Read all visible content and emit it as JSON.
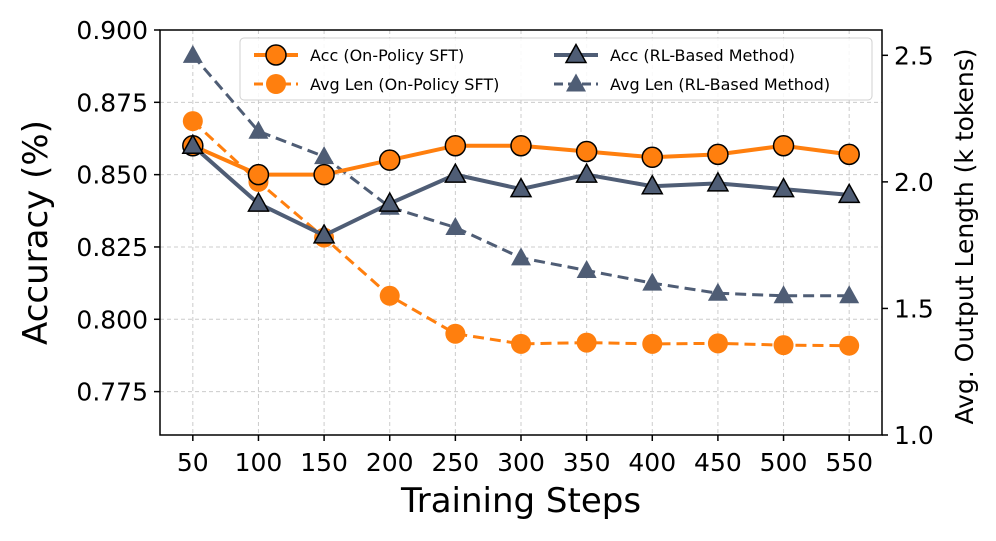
{
  "chart_data": {
    "type": "line",
    "xlabel": "Training Steps",
    "ylabel": "Accuracy (%)",
    "y2label": "Avg. Output Length (k tokens)",
    "x": [
      50,
      100,
      150,
      200,
      250,
      300,
      350,
      400,
      450,
      500,
      550
    ],
    "xticks": [
      "50",
      "100",
      "150",
      "200",
      "250",
      "300",
      "350",
      "400",
      "450",
      "500",
      "550"
    ],
    "ylim": [
      0.76,
      0.9
    ],
    "yticks": [
      "0.775",
      "0.800",
      "0.825",
      "0.850",
      "0.875",
      "0.900"
    ],
    "y2lim": [
      1.0,
      2.6
    ],
    "y2ticks": [
      "1.0",
      "1.5",
      "2.0",
      "2.5"
    ],
    "grid": true,
    "legend_position": "top",
    "series": [
      {
        "name": "Acc (On-Policy SFT)",
        "axis": "left",
        "color": "#ff7f0e",
        "marker": "circle",
        "dash": "solid",
        "values": [
          0.86,
          0.85,
          0.85,
          0.855,
          0.86,
          0.86,
          0.858,
          0.856,
          0.857,
          0.86,
          0.857
        ]
      },
      {
        "name": "Avg Len (On-Policy SFT)",
        "axis": "right",
        "color": "#ff7f0e",
        "marker": "circle",
        "dash": "dashed",
        "values": [
          2.24,
          2.0,
          1.78,
          1.55,
          1.4,
          1.36,
          1.365,
          1.36,
          1.362,
          1.355,
          1.353
        ]
      },
      {
        "name": "Acc (RL-Based Method)",
        "axis": "left",
        "color": "#4f5d75",
        "marker": "triangle",
        "dash": "solid",
        "values": [
          0.86,
          0.84,
          0.829,
          0.84,
          0.85,
          0.845,
          0.85,
          0.846,
          0.847,
          0.845,
          0.843
        ]
      },
      {
        "name": "Avg Len (RL-Based Method)",
        "axis": "right",
        "color": "#4f5d75",
        "marker": "triangle",
        "dash": "dashed",
        "values": [
          2.5,
          2.2,
          2.1,
          1.9,
          1.82,
          1.7,
          1.65,
          1.6,
          1.56,
          1.55,
          1.55
        ]
      }
    ]
  }
}
